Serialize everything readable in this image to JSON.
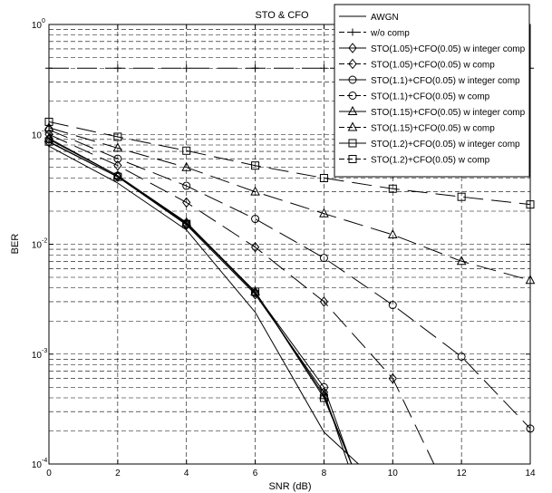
{
  "chart_data": {
    "type": "line",
    "title": "STO & CFO",
    "xlabel": "SNR (dB)",
    "ylabel": "BER",
    "x_scale": "linear",
    "y_scale": "log",
    "xlim": [
      0,
      14
    ],
    "ylim": [
      0.0001,
      1
    ],
    "grid": true,
    "legend_position": "top-right",
    "x_ticks": [
      0,
      2,
      4,
      6,
      8,
      10,
      12,
      14
    ],
    "x_tick_labels": [
      "0",
      "2",
      "4",
      "6",
      "8",
      "10",
      "12",
      "14"
    ],
    "y_ticks": [
      {
        "value": 1,
        "mantissa": "10",
        "exponent": "0"
      },
      {
        "value": 0.1,
        "mantissa": "10",
        "exponent": "-1"
      },
      {
        "value": 0.01,
        "mantissa": "10",
        "exponent": "-2"
      },
      {
        "value": 0.001,
        "mantissa": "10",
        "exponent": "-3"
      },
      {
        "value": 0.0001,
        "mantissa": "10",
        "exponent": "-4"
      }
    ],
    "series": [
      {
        "name": "AWGN",
        "marker": "none",
        "dash": "solid",
        "x": [
          0,
          2,
          4,
          6,
          8,
          9
        ],
        "y": [
          0.078,
          0.036,
          0.0135,
          0.0024,
          0.000195,
          0.0001
        ]
      },
      {
        "name": "w/o comp",
        "marker": "plus",
        "dash": "dashed",
        "x": [
          0,
          2,
          4,
          6,
          8,
          10,
          12,
          14
        ],
        "y": [
          0.4,
          0.4,
          0.4,
          0.4,
          0.4,
          0.4,
          0.4,
          0.4
        ]
      },
      {
        "name": "STO(1.05)+CFO(0.05) w integer comp",
        "marker": "diamond",
        "dash": "solid",
        "x": [
          0,
          2,
          4,
          6,
          8,
          8.7
        ],
        "y": [
          0.085,
          0.041,
          0.015,
          0.0035,
          0.00045,
          0.0001
        ]
      },
      {
        "name": "STO(1.05)+CFO(0.05) w comp",
        "marker": "diamond",
        "dash": "dashed",
        "x": [
          0,
          2,
          4,
          6,
          8,
          10,
          11.2
        ],
        "y": [
          0.1,
          0.052,
          0.024,
          0.0094,
          0.003,
          0.0006,
          0.0001
        ]
      },
      {
        "name": "STO(1.1)+CFO(0.05) w integer comp",
        "marker": "circle",
        "dash": "solid",
        "x": [
          0,
          2,
          4,
          6,
          8,
          8.8
        ],
        "y": [
          0.09,
          0.042,
          0.0155,
          0.0036,
          0.0005,
          0.0001
        ]
      },
      {
        "name": "STO(1.1)+CFO(0.05) w comp",
        "marker": "circle",
        "dash": "dashed",
        "x": [
          0,
          2,
          4,
          6,
          8,
          10,
          12,
          14
        ],
        "y": [
          0.11,
          0.06,
          0.034,
          0.017,
          0.0075,
          0.0028,
          0.00095,
          0.00021
        ]
      },
      {
        "name": "STO(1.15)+CFO(0.05) w integer comp",
        "marker": "triangle",
        "dash": "solid",
        "x": [
          0,
          2,
          4,
          6,
          8,
          8.8
        ],
        "y": [
          0.092,
          0.042,
          0.0158,
          0.0037,
          0.00042,
          0.0001
        ]
      },
      {
        "name": "STO(1.15)+CFO(0.05) w comp",
        "marker": "triangle",
        "dash": "dashed",
        "x": [
          0,
          2,
          4,
          6,
          8,
          10,
          12,
          14
        ],
        "y": [
          0.115,
          0.075,
          0.05,
          0.03,
          0.019,
          0.0122,
          0.007,
          0.0047
        ]
      },
      {
        "name": "STO(1.2)+CFO(0.05) w integer comp",
        "marker": "square",
        "dash": "solid",
        "x": [
          0,
          2,
          4,
          6,
          8,
          8.8
        ],
        "y": [
          0.086,
          0.041,
          0.0153,
          0.0037,
          0.0004,
          0.0001
        ]
      },
      {
        "name": "STO(1.2)+CFO(0.05) w comp",
        "marker": "square",
        "dash": "dashed",
        "x": [
          0,
          2,
          4,
          6,
          8,
          10,
          12,
          14
        ],
        "y": [
          0.13,
          0.095,
          0.071,
          0.052,
          0.04,
          0.032,
          0.027,
          0.023
        ]
      }
    ]
  }
}
